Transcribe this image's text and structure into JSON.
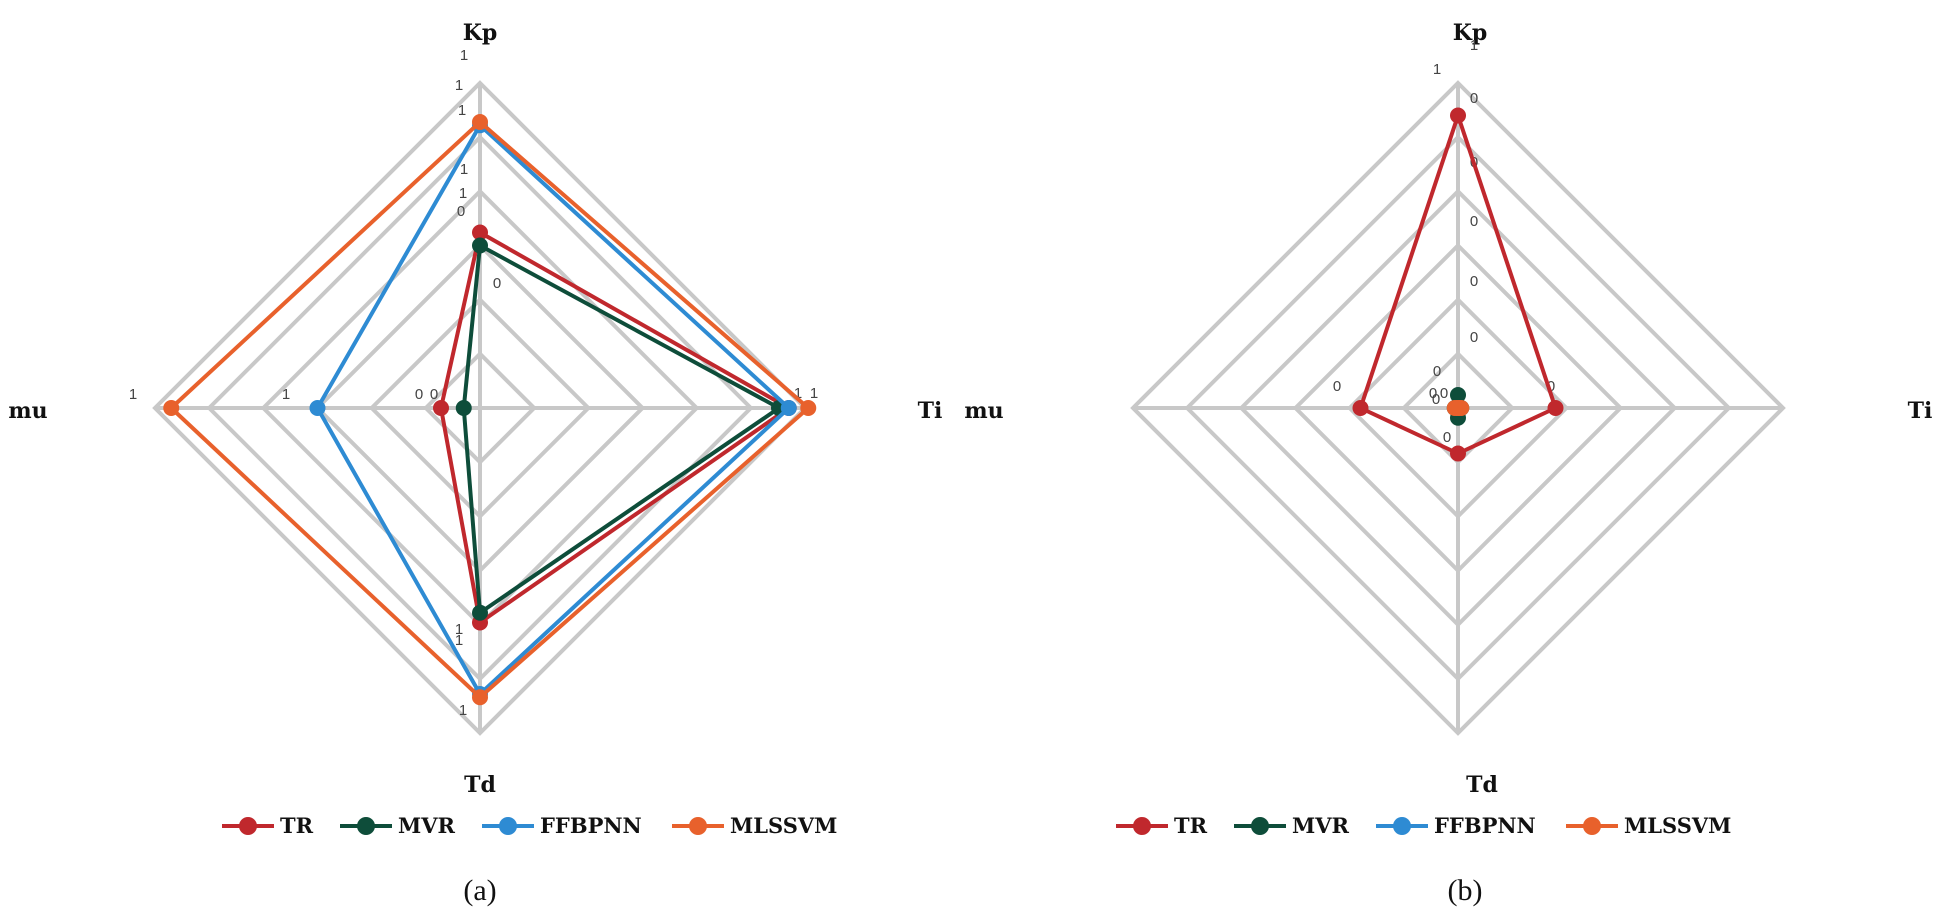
{
  "chart_data": [
    {
      "type": "radar",
      "panel": "a",
      "caption": "(a)",
      "axes": [
        "Kp",
        "Ti",
        "Td",
        "mu"
      ],
      "rings": 6,
      "series": [
        {
          "name": "TR",
          "color": "#c0282d",
          "values": [
            0.54,
            0.95,
            0.66,
            0.12
          ]
        },
        {
          "name": "MVR",
          "color": "#0e4d3a",
          "values": [
            0.5,
            0.92,
            0.63,
            0.05
          ]
        },
        {
          "name": "FFBPNN",
          "color": "#2e8bd3",
          "values": [
            0.87,
            0.95,
            0.88,
            0.5
          ]
        },
        {
          "name": "MLSSVM",
          "color": "#e8612c",
          "values": [
            0.88,
            1.01,
            0.89,
            0.95
          ]
        }
      ],
      "data_labels": [
        {
          "axis": "Kp",
          "values": [
            "1",
            "1",
            "1",
            "1",
            "1",
            "0",
            "0"
          ]
        },
        {
          "axis": "Ti",
          "values": [
            "1",
            "1"
          ]
        },
        {
          "axis": "Td",
          "values": [
            "1",
            "1",
            "1"
          ]
        },
        {
          "axis": "mu",
          "values": [
            "1",
            "1",
            "0",
            "0"
          ]
        }
      ],
      "legend": "bottom"
    },
    {
      "type": "radar",
      "panel": "b",
      "caption": "(b)",
      "axes": [
        "Kp",
        "Ti",
        "Td",
        "mu"
      ],
      "rings": 6,
      "series": [
        {
          "name": "TR",
          "color": "#c0282d",
          "values": [
            0.9,
            0.3,
            0.14,
            0.3
          ]
        },
        {
          "name": "MVR",
          "color": "#0e4d3a",
          "values": [
            0.04,
            0.01,
            0.03,
            0.01
          ]
        },
        {
          "name": "FFBPNN",
          "color": "#2e8bd3",
          "values": [
            0.0,
            0.0,
            0.0,
            0.0
          ]
        },
        {
          "name": "MLSSVM",
          "color": "#e8612c",
          "values": [
            0.0,
            0.01,
            0.0,
            0.01
          ]
        }
      ],
      "data_labels": [
        {
          "axis": "Kp",
          "values": [
            "1",
            "1",
            "0",
            "0",
            "0",
            "0",
            "0"
          ]
        },
        {
          "axis": "Ti",
          "values": [
            "0"
          ]
        },
        {
          "axis": "Td",
          "values": [
            "0"
          ]
        },
        {
          "axis": "mu",
          "values": [
            "0",
            "0",
            "0",
            "0",
            "0"
          ]
        }
      ],
      "legend": "bottom"
    }
  ]
}
